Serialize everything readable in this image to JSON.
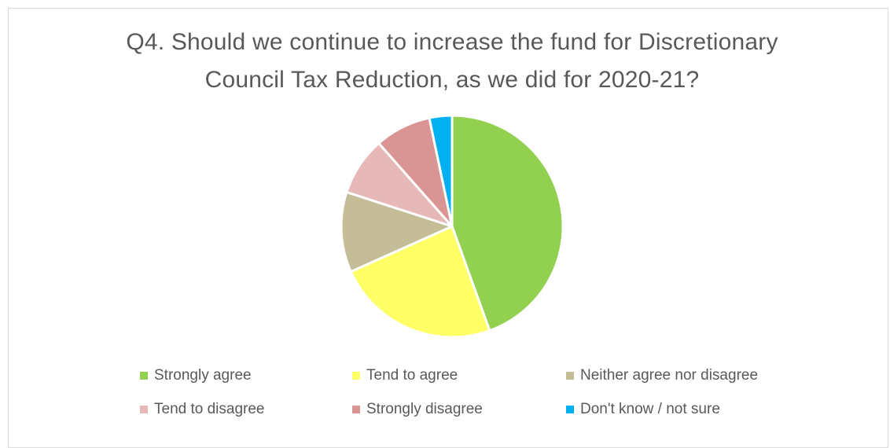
{
  "chart_data": {
    "type": "pie",
    "title": "Q4. Should we continue to increase the fund for Discretionary Council Tax Reduction, as we did for 2020-21?",
    "title_lines": [
      "Q4. Should we continue to increase the fund for Discretionary",
      "Council Tax Reduction, as we did for 2020-21?"
    ],
    "legend_position": "bottom",
    "slices": [
      {
        "label": "Strongly agree",
        "value": 44.5,
        "color": "#92D050"
      },
      {
        "label": "Tend to agree",
        "value": 23.8,
        "color": "#FFFF66"
      },
      {
        "label": "Neither agree nor disagree",
        "value": 11.7,
        "color": "#C4BD97"
      },
      {
        "label": "Tend to disagree",
        "value": 8.5,
        "color": "#E6B9B8"
      },
      {
        "label": "Strongly disagree",
        "value": 8.2,
        "color": "#D99594"
      },
      {
        "label": "Don't know / not sure",
        "value": 3.3,
        "color": "#00B0F0"
      }
    ]
  }
}
